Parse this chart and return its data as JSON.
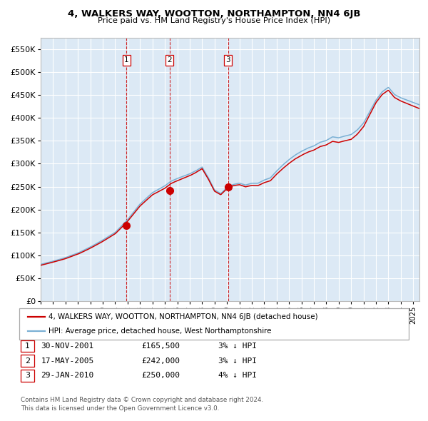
{
  "title": "4, WALKERS WAY, WOOTTON, NORTHAMPTON, NN4 6JB",
  "subtitle": "Price paid vs. HM Land Registry's House Price Index (HPI)",
  "legend_line1": "4, WALKERS WAY, WOOTTON, NORTHAMPTON, NN4 6JB (detached house)",
  "legend_line2": "HPI: Average price, detached house, West Northamptonshire",
  "transactions": [
    {
      "num": 1,
      "x_year": 2001.92,
      "price": 165500
    },
    {
      "num": 2,
      "x_year": 2005.38,
      "price": 242000
    },
    {
      "num": 3,
      "x_year": 2010.08,
      "price": 250000
    }
  ],
  "table_rows": [
    {
      "num": 1,
      "date": "30-NOV-2001",
      "price": "£165,500",
      "note": "3% ↓ HPI"
    },
    {
      "num": 2,
      "date": "17-MAY-2005",
      "price": "£242,000",
      "note": "3% ↓ HPI"
    },
    {
      "num": 3,
      "date": "29-JAN-2010",
      "price": "£250,000",
      "note": "4% ↓ HPI"
    }
  ],
  "footer1": "Contains HM Land Registry data © Crown copyright and database right 2024.",
  "footer2": "This data is licensed under the Open Government Licence v3.0.",
  "red_line_color": "#cc0000",
  "blue_line_color": "#7ab0d4",
  "bg_color": "#dce9f5",
  "grid_color": "#ffffff",
  "vline_color": "#cc0000",
  "marker_color": "#cc0000",
  "ylim": [
    0,
    575000
  ],
  "yticks": [
    0,
    50000,
    100000,
    150000,
    200000,
    250000,
    300000,
    350000,
    400000,
    450000,
    500000,
    550000
  ],
  "xlim_start": 1995.0,
  "xlim_end": 2025.5,
  "hpi_knots": [
    [
      1995.0,
      80000
    ],
    [
      1996.0,
      87000
    ],
    [
      1997.0,
      95000
    ],
    [
      1998.0,
      105000
    ],
    [
      1999.0,
      118000
    ],
    [
      2000.0,
      133000
    ],
    [
      2001.0,
      150000
    ],
    [
      2002.0,
      178000
    ],
    [
      2003.0,
      212000
    ],
    [
      2004.0,
      237000
    ],
    [
      2005.0,
      252000
    ],
    [
      2005.5,
      262000
    ],
    [
      2006.0,
      268000
    ],
    [
      2007.0,
      278000
    ],
    [
      2007.5,
      285000
    ],
    [
      2008.0,
      293000
    ],
    [
      2008.5,
      270000
    ],
    [
      2009.0,
      243000
    ],
    [
      2009.5,
      235000
    ],
    [
      2010.0,
      248000
    ],
    [
      2010.5,
      255000
    ],
    [
      2011.0,
      258000
    ],
    [
      2011.5,
      254000
    ],
    [
      2012.0,
      258000
    ],
    [
      2012.5,
      258000
    ],
    [
      2013.0,
      265000
    ],
    [
      2013.5,
      270000
    ],
    [
      2014.0,
      285000
    ],
    [
      2014.5,
      298000
    ],
    [
      2015.0,
      310000
    ],
    [
      2015.5,
      320000
    ],
    [
      2016.0,
      328000
    ],
    [
      2016.5,
      335000
    ],
    [
      2017.0,
      340000
    ],
    [
      2017.5,
      348000
    ],
    [
      2018.0,
      352000
    ],
    [
      2018.5,
      360000
    ],
    [
      2019.0,
      358000
    ],
    [
      2019.5,
      362000
    ],
    [
      2020.0,
      365000
    ],
    [
      2020.5,
      375000
    ],
    [
      2021.0,
      390000
    ],
    [
      2021.5,
      415000
    ],
    [
      2022.0,
      440000
    ],
    [
      2022.5,
      458000
    ],
    [
      2023.0,
      468000
    ],
    [
      2023.5,
      452000
    ],
    [
      2024.0,
      445000
    ],
    [
      2024.5,
      440000
    ],
    [
      2025.0,
      435000
    ],
    [
      2025.5,
      430000
    ]
  ],
  "red_offset_knots": [
    [
      1995.0,
      -2000
    ],
    [
      2001.0,
      -3000
    ],
    [
      2005.0,
      -5000
    ],
    [
      2010.0,
      -2000
    ],
    [
      2015.0,
      -8000
    ],
    [
      2020.0,
      -10000
    ],
    [
      2022.0,
      -5000
    ],
    [
      2025.5,
      -8000
    ]
  ]
}
